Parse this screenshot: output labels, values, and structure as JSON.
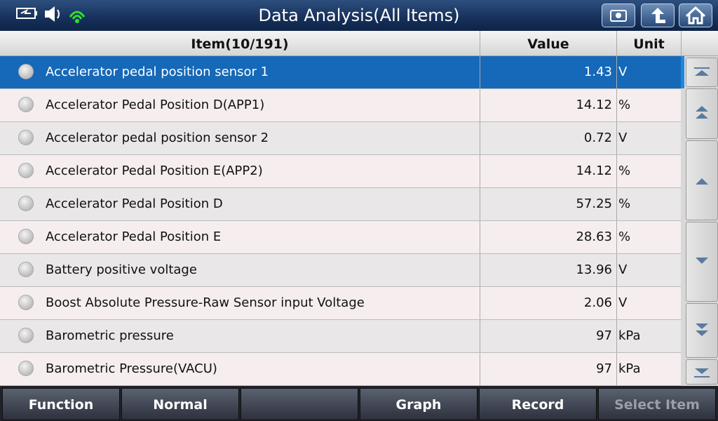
{
  "header": {
    "title": "Data Analysis(All Items)"
  },
  "table": {
    "columns": [
      "Item(10/191)",
      "Value",
      "Unit"
    ],
    "rows": [
      [
        "Accelerator pedal position sensor 1",
        1.43,
        "V"
      ],
      [
        "Accelerator Pedal Position D(APP1)",
        14.12,
        "%"
      ],
      [
        "Accelerator pedal position sensor 2",
        0.72,
        "V"
      ],
      [
        "Accelerator Pedal Position E(APP2)",
        14.12,
        "%"
      ],
      [
        "Accelerator Pedal Position D",
        57.25,
        "%"
      ],
      [
        "Accelerator Pedal Position E",
        28.63,
        "%"
      ],
      [
        "Battery positive voltage",
        13.96,
        "V"
      ],
      [
        "Boost Absolute Pressure-Raw Sensor input Voltage",
        2.06,
        "V"
      ],
      [
        "Barometric pressure",
        97,
        "kPa"
      ],
      [
        "Barometric Pressure(VACU)",
        97,
        "kPa"
      ]
    ]
  },
  "footer": {
    "buttons": [
      "Function",
      "Normal",
      "Graph",
      "Record",
      "Select Item"
    ]
  }
}
